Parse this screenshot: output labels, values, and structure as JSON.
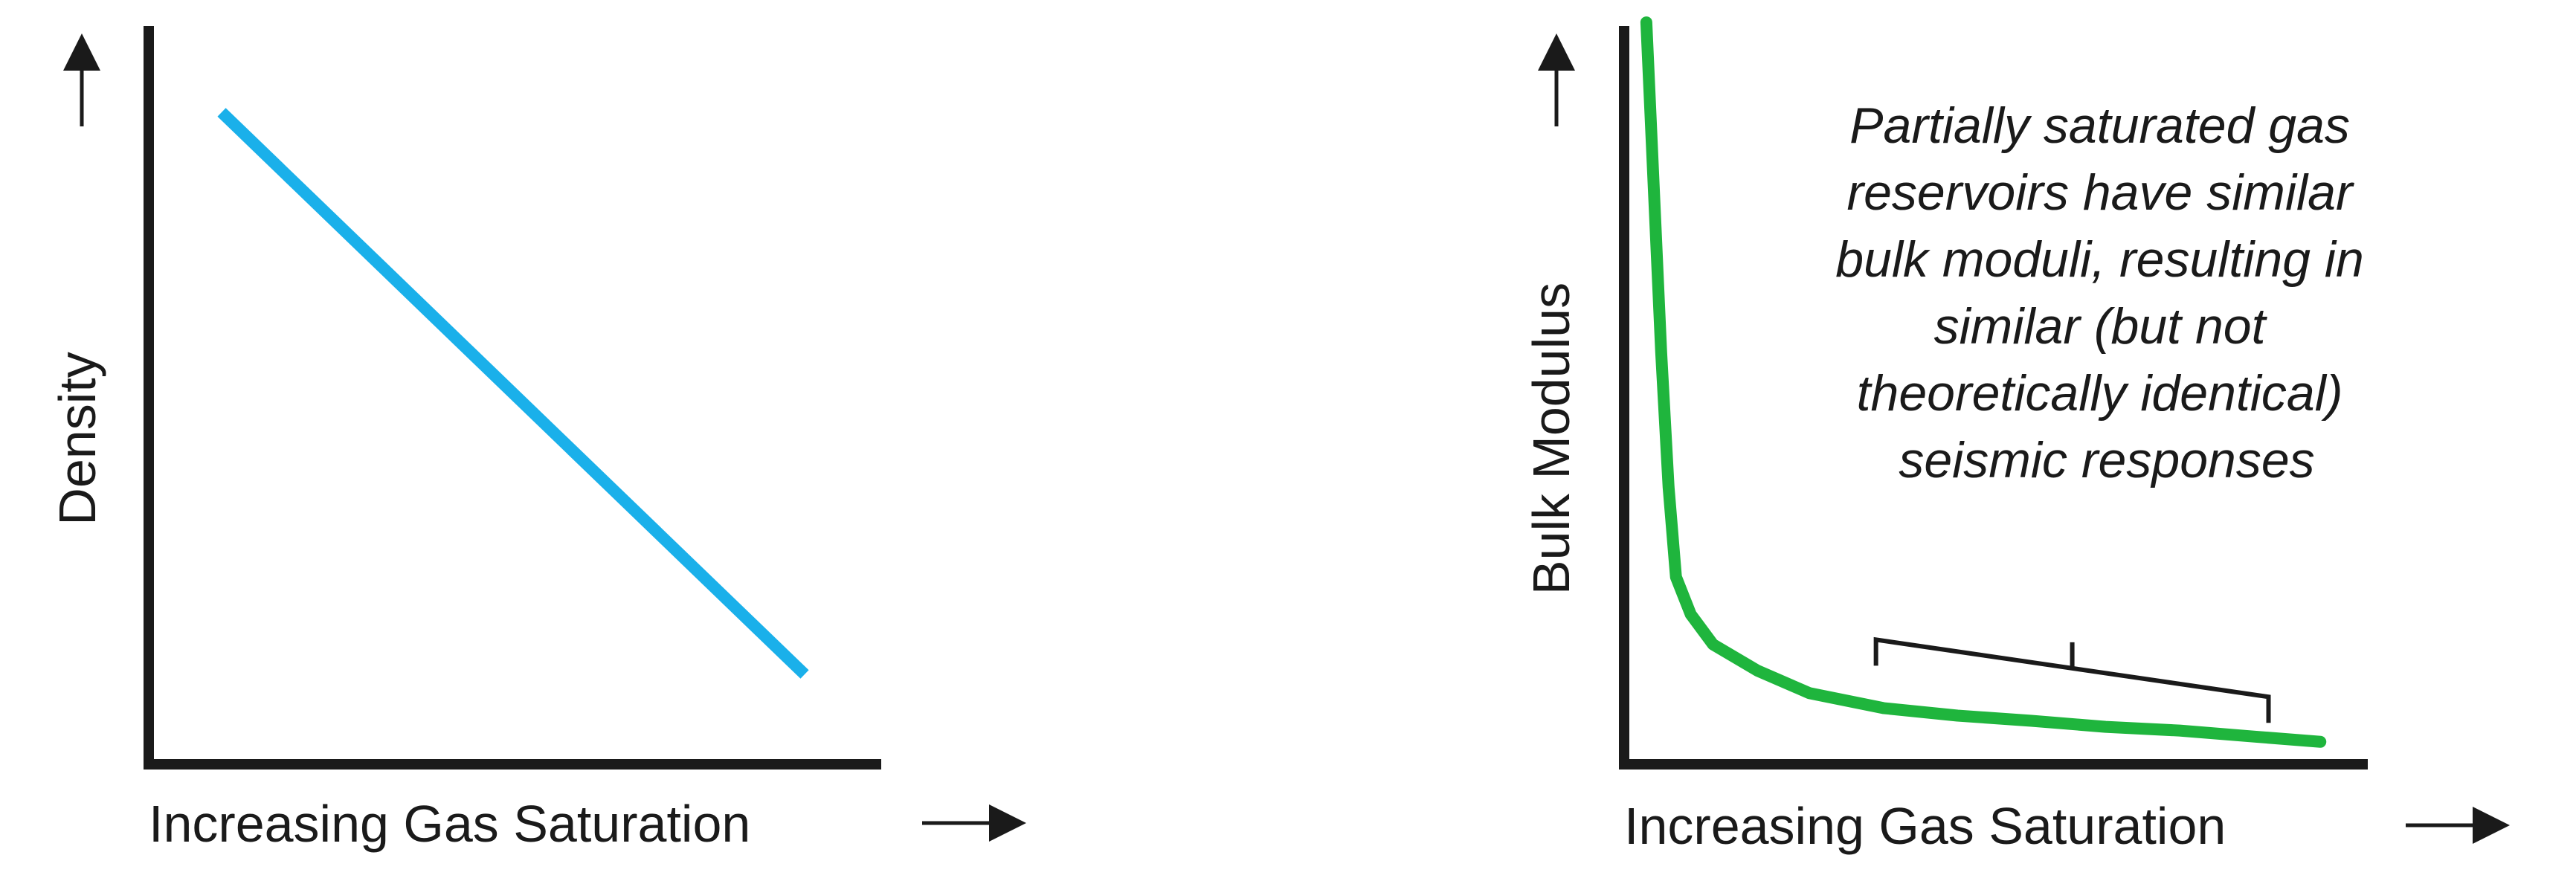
{
  "chart_data": [
    {
      "type": "line",
      "title": "",
      "xlabel": "Increasing Gas Saturation",
      "ylabel": "Density",
      "xlim": [
        0,
        1
      ],
      "ylim": [
        0,
        1
      ],
      "grid": false,
      "legend": "none",
      "line_color": "#1ab0ea",
      "series": [
        {
          "x": [
            0.1,
            0.9
          ],
          "y": [
            0.87,
            0.12
          ]
        }
      ]
    },
    {
      "type": "line",
      "title": "",
      "xlabel": "Increasing Gas Saturation",
      "ylabel": "Bulk Modulus",
      "xlim": [
        0,
        1
      ],
      "ylim": [
        0,
        1
      ],
      "grid": false,
      "legend": "none",
      "line_color": "#1fb53d",
      "series": [
        {
          "x": [
            0.03,
            0.05,
            0.06,
            0.07,
            0.09,
            0.12,
            0.18,
            0.25,
            0.35,
            0.45,
            0.55,
            0.65,
            0.75,
            0.85,
            0.94
          ],
          "y": [
            0.99,
            0.55,
            0.37,
            0.25,
            0.2,
            0.16,
            0.125,
            0.095,
            0.075,
            0.065,
            0.058,
            0.05,
            0.045,
            0.037,
            0.03
          ]
        }
      ],
      "bracket": {
        "x": [
          0.34,
          0.87
        ]
      },
      "annotation": [
        "Partially saturated gas",
        "reservoirs have similar",
        "bulk moduli, resulting in",
        "similar (but not",
        "theoretically identical)",
        "seismic responses"
      ]
    }
  ]
}
